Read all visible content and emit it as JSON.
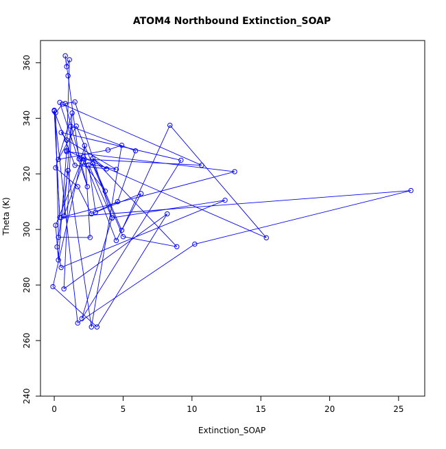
{
  "chart_data": {
    "type": "scatter",
    "title": "ATOM4 Northbound Extinction_SOAP",
    "xlabel": "Extinction_SOAP",
    "ylabel": "Theta (K)",
    "xlim": [
      -1.0,
      26.9
    ],
    "ylim": [
      240,
      368
    ],
    "x_ticks": [
      0,
      5,
      10,
      15,
      20,
      25
    ],
    "x_tick_labels": [
      "0",
      "5",
      "10",
      "15",
      "20",
      "25"
    ],
    "y_ticks": [
      240,
      260,
      280,
      300,
      320,
      340,
      360
    ],
    "y_tick_labels": [
      "240",
      "260",
      "280",
      "300",
      "320",
      "340",
      "360"
    ],
    "grid": false,
    "connected": true,
    "series_color": "#0000ff",
    "series": [
      {
        "style": "points connected by lines",
        "x": [
          0.4,
          2.4,
          0.8,
          1.5,
          4.2,
          2.5,
          3.0,
          6.3,
          4.5,
          2.1,
          0.1,
          0.3,
          0.9,
          15.4,
          8.4,
          4.9,
          2.8,
          3.7,
          2.1,
          4.5,
          0.9,
          0.5,
          9.2,
          2.0,
          4.2,
          12.4,
          0.5,
          0.2,
          1.0,
          2.7,
          4.9,
          3.9,
          0.3,
          1.6,
          5.0,
          8.9,
          2.8,
          3.8,
          1.5,
          0.0,
          0.4,
          0.0,
          1.7,
          10.2,
          25.9,
          0.5,
          13.1,
          0.9,
          1.1,
          0.9,
          0.8,
          1.0,
          1.8,
          10.7,
          0.6,
          0.1,
          0.3,
          2.6,
          2.2,
          -0.1,
          3.1,
          8.2,
          0.7,
          1.3,
          0.1,
          1.7,
          2.7,
          4.6,
          5.9,
          1.2,
          0.7,
          2.2
        ],
        "y": [
          345.7,
          315.4,
          345.3,
          345.9,
          304.1,
          323.3,
          306.2,
          312.9,
          296.0,
          326.1,
          301.5,
          289.0,
          328.4,
          297.0,
          337.5,
          299.7,
          323.8,
          313.8,
          324.0,
          321.6,
          332.2,
          334.9,
          324.9,
          267.9,
          304.2,
          310.5,
          286.3,
          293.7,
          321.2,
          264.9,
          330.3,
          328.6,
          325.2,
          337.2,
          297.4,
          293.8,
          325.6,
          321.8,
          323.1,
          342.6,
          304.3,
          342.9,
          266.3,
          294.7,
          314.0,
          304.3,
          320.8,
          328.0,
          361.1,
          358.6,
          362.5,
          355.3,
          325.4,
          323.1,
          345.1,
          342.0,
          297.2,
          297.1,
          330.2,
          279.4,
          264.9,
          305.6,
          278.6,
          341.9,
          322.2,
          315.4,
          305.6,
          310.0,
          328.3,
          337.1,
          304.8,
          325.3
        ]
      }
    ]
  }
}
